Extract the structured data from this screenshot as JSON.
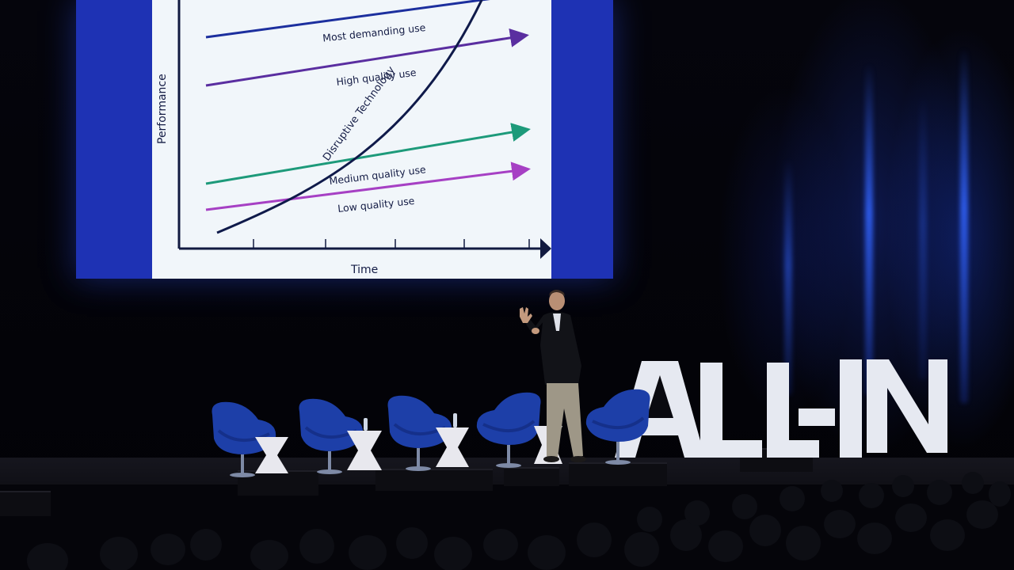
{
  "slide": {
    "y_axis_label": "Performance",
    "x_axis_label": "Time",
    "lines": [
      {
        "label": "Most demanding use",
        "color": "#1c2f9e"
      },
      {
        "label": "High quality use",
        "color": "#5a2ea0"
      },
      {
        "label": "Medium quality use",
        "color": "#1d9a7a"
      },
      {
        "label": "Low quality use",
        "color": "#a640c4"
      }
    ],
    "curve": {
      "label": "Disruptive Technology",
      "color": "#0f1a4a"
    }
  },
  "logo": {
    "text": "ALL-IN",
    "color": "#e9ecf3"
  }
}
